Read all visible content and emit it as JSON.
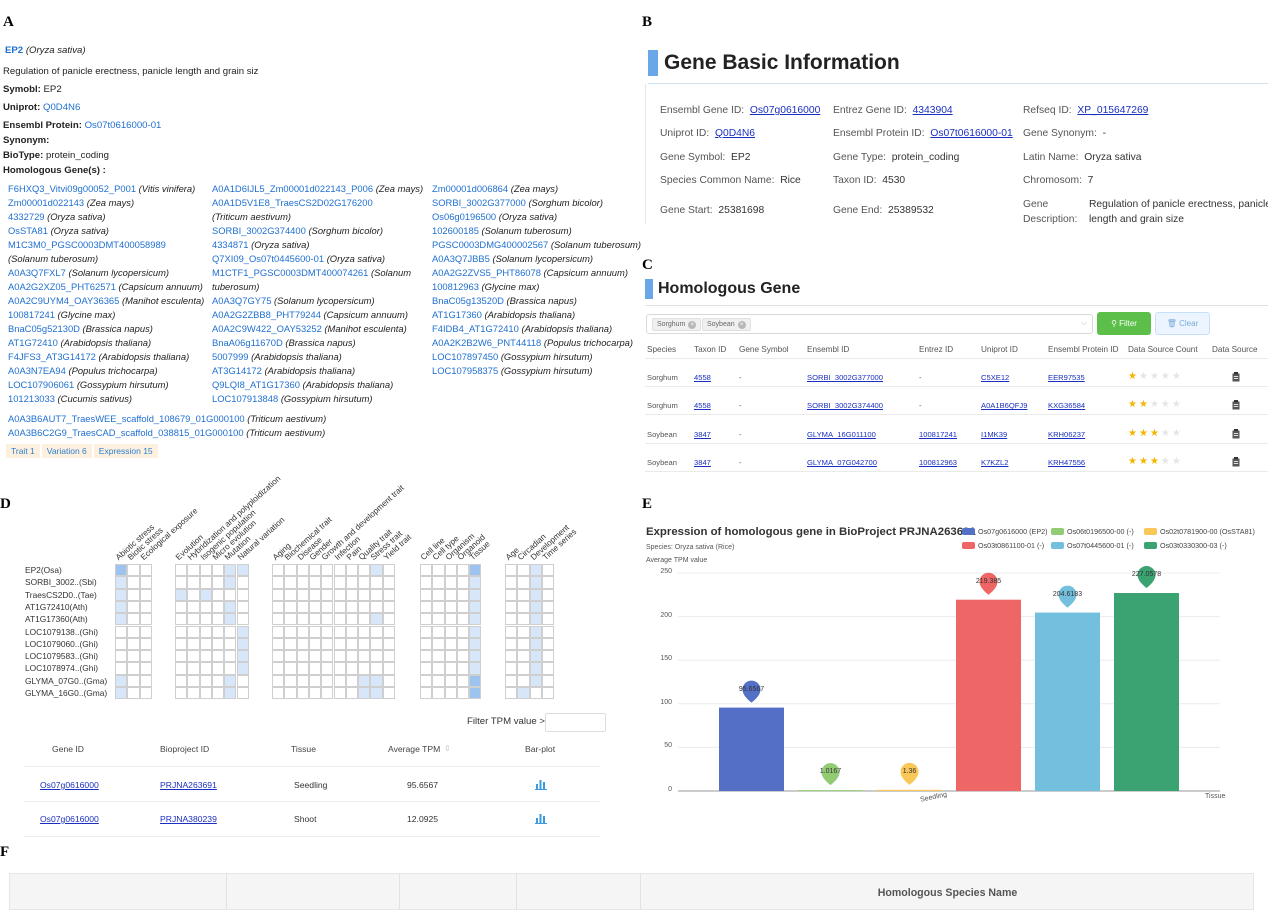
{
  "panel_labels": {
    "a": "A",
    "b": "B",
    "c": "C",
    "d": "D",
    "e": "E",
    "f": "F"
  },
  "panelA": {
    "gene": "EP2",
    "species": "(Oryza sativa)",
    "description": "Regulation of panicle erectness, panicle length and grain siz",
    "symbol_label": "Symobl:",
    "symbol_value": "EP2",
    "uniprot_label": "Uniprot:",
    "uniprot_value": "Q0D4N6",
    "ensembl_label": "Ensembl Protein:",
    "ensembl_value": "Os07t0616000-01",
    "synonym_label": "Synonym:",
    "biotype_label": "BioType:",
    "biotype_value": "protein_coding",
    "homologous_label": "Homologous Gene(s) :",
    "col1": [
      {
        "id": "F6HXQ3_Vitvi09g00052_P001",
        "sp": "(Vitis vinifera)"
      },
      {
        "id": "Zm00001d022143",
        "sp": "(Zea mays)"
      },
      {
        "id": "4332729",
        "sp": "(Oryza sativa)"
      },
      {
        "id": "OsSTA81",
        "sp": "(Oryza sativa)"
      },
      {
        "id": "M1C3M0_PGSC0003DMT400058989",
        "sp": ""
      },
      {
        "id": "",
        "sp": "(Solanum tuberosum)"
      },
      {
        "id": "A0A3Q7FXL7",
        "sp": "(Solanum lycopersicum)"
      },
      {
        "id": "A0A2G2XZ05_PHT62571",
        "sp": "(Capsicum annuum)"
      },
      {
        "id": "A0A2C9UYM4_OAY36365",
        "sp": "(Manihot esculenta)"
      },
      {
        "id": "100817241",
        "sp": "(Glycine max)"
      },
      {
        "id": "BnaC05g52130D",
        "sp": "(Brassica napus)"
      },
      {
        "id": "AT1G72410",
        "sp": "(Arabidopsis thaliana)"
      },
      {
        "id": "F4JFS3_AT3G14172",
        "sp": "(Arabidopsis thaliana)"
      },
      {
        "id": "A0A3N7EA94",
        "sp": "(Populus trichocarpa)"
      },
      {
        "id": "LOC107906061",
        "sp": "(Gossypium hirsutum)"
      },
      {
        "id": "101213033",
        "sp": "(Cucumis sativus)"
      }
    ],
    "col2": [
      {
        "id": "A0A1D6IJL5_Zm00001d022143_P006",
        "sp": "(Zea mays)"
      },
      {
        "id": "A0A1D5V1E8_TraesCS2D02G176200",
        "sp": ""
      },
      {
        "id": "",
        "sp": "(Triticum aestivum)"
      },
      {
        "id": "SORBI_3002G374400",
        "sp": "(Sorghum bicolor)"
      },
      {
        "id": "4334871",
        "sp": "(Oryza sativa)"
      },
      {
        "id": "Q7XI09_Os07t0445600-01",
        "sp": "(Oryza sativa)"
      },
      {
        "id": "M1CTF1_PGSC0003DMT400074261",
        "sp": "(Solanum"
      },
      {
        "id": "",
        "sp": "tuberosum)"
      },
      {
        "id": "A0A3Q7GY75",
        "sp": "(Solanum lycopersicum)"
      },
      {
        "id": "A0A2G2ZBB8_PHT79244",
        "sp": "(Capsicum annuum)"
      },
      {
        "id": "A0A2C9W422_OAY53252",
        "sp": "(Manihot esculenta)"
      },
      {
        "id": "BnaA06g11670D",
        "sp": "(Brassica napus)"
      },
      {
        "id": "5007999",
        "sp": "(Arabidopsis thaliana)"
      },
      {
        "id": "AT3G14172",
        "sp": "(Arabidopsis thaliana)"
      },
      {
        "id": "Q9LQI8_AT1G17360",
        "sp": "(Arabidopsis thaliana)"
      },
      {
        "id": "LOC107913848",
        "sp": "(Gossypium hirsutum)"
      }
    ],
    "col3": [
      {
        "id": "Zm00001d006864",
        "sp": "(Zea mays)"
      },
      {
        "id": "SORBI_3002G377000",
        "sp": "(Sorghum bicolor)"
      },
      {
        "id": "Os06g0196500",
        "sp": "(Oryza sativa)"
      },
      {
        "id": "102600185",
        "sp": "(Solanum tuberosum)"
      },
      {
        "id": "PGSC0003DMG400002567",
        "sp": "(Solanum tuberosum)"
      },
      {
        "id": "A0A3Q7JBB5",
        "sp": "(Solanum lycopersicum)"
      },
      {
        "id": "A0A2G2ZVS5_PHT86078",
        "sp": "(Capsicum annuum)"
      },
      {
        "id": "100812963",
        "sp": "(Glycine max)"
      },
      {
        "id": "BnaC05g13520D",
        "sp": "(Brassica napus)"
      },
      {
        "id": "AT1G17360",
        "sp": "(Arabidopsis thaliana)"
      },
      {
        "id": "F4IDB4_AT1G72410",
        "sp": "(Arabidopsis thaliana)"
      },
      {
        "id": "A0A2K2B2W6_PNT44118",
        "sp": "(Populus trichocarpa)"
      },
      {
        "id": "LOC107897450",
        "sp": "(Gossypium hirsutum)"
      },
      {
        "id": "LOC107958375",
        "sp": "(Gossypium hirsutum)"
      }
    ],
    "long1": {
      "id": "A0A3B6AUT7_TraesWEE_scaffold_108679_01G000100",
      "sp": "(Triticum aestivum)"
    },
    "long2": {
      "id": "A0A3B6C2G9_TraesCAD_scaffold_038815_01G000100",
      "sp": "(Triticum aestivum)"
    },
    "tabs": [
      "Trait 1",
      "Variation 6",
      "Expression 15"
    ]
  },
  "panelB": {
    "title": "Gene Basic Information",
    "ensembl_gene_label": "Ensembl Gene ID:",
    "ensembl_gene_value": "Os07g0616000",
    "entrez_label": "Entrez Gene ID:",
    "entrez_value": "4343904",
    "refseq_label": "Refseq ID:",
    "refseq_value": "XP_015647269",
    "uniprot_label": "Uniprot ID:",
    "uniprot_value": "Q0D4N6",
    "ensembl_protein_label": "Ensembl Protein ID:",
    "ensembl_protein_value": "Os07t0616000-01",
    "synonym_label": "Gene Synonym:",
    "synonym_value": "-",
    "symbol_label": "Gene Symbol:",
    "symbol_value": "EP2",
    "type_label": "Gene Type:",
    "type_value": "protein_coding",
    "latin_label": "Latin Name:",
    "latin_value": "Oryza sativa",
    "common_label": "Species Common Name:",
    "common_value": "Rice",
    "taxon_label": "Taxon ID:",
    "taxon_value": "4530",
    "chrom_label": "Chromosom:",
    "chrom_value": "7",
    "start_label": "Gene Start:",
    "start_value": "25381698",
    "end_label": "Gene End:",
    "end_value": "25389532",
    "desc_label1": "Gene",
    "desc_label2": "Description:",
    "desc_value1": "Regulation of panicle erectness, panicle",
    "desc_value2": "length and grain size"
  },
  "panelC": {
    "title": "Homologous Gene",
    "chips": [
      "Sorghum",
      "Soybean"
    ],
    "filter_label": "Filter",
    "clear_label": "Clear",
    "headers": [
      "Species",
      "Taxon ID",
      "Gene Symbol",
      "Ensembl ID",
      "Entrez ID",
      "Uniprot ID",
      "Ensembl Protein ID",
      "Data Source Count",
      "Data Source"
    ],
    "rows": [
      {
        "species": "Sorghum",
        "taxon": "4558",
        "symbol": "-",
        "ensembl": "SORBI_3002G377000",
        "entrez": "-",
        "uniprot": "C5XE12",
        "protein": "EER97535",
        "stars": 1
      },
      {
        "species": "Sorghum",
        "taxon": "4558",
        "symbol": "-",
        "ensembl": "SORBI_3002G374400",
        "entrez": "-",
        "uniprot": "A0A1B6QFJ9",
        "protein": "KXG36584",
        "stars": 2
      },
      {
        "species": "Soybean",
        "taxon": "3847",
        "symbol": "-",
        "ensembl": "GLYMA_16G011100",
        "entrez": "100817241",
        "uniprot": "I1MK39",
        "protein": "KRH06237",
        "stars": 3
      },
      {
        "species": "Soybean",
        "taxon": "3847",
        "symbol": "-",
        "ensembl": "GLYMA_07G042700",
        "entrez": "100812963",
        "uniprot": "K7KZL2",
        "protein": "KRH47556",
        "stars": 3
      }
    ]
  },
  "panelD": {
    "groups": [
      [
        "Abiotic stress",
        "Biotic stress",
        "Ecological exposure"
      ],
      [
        "Evolution",
        "Hybridization and polyploidization",
        "Isogenic population",
        "Micro evolution",
        "Mutation",
        "Natural variation"
      ],
      [
        "Aging",
        "Biochemical trait",
        "Disease",
        "Gender",
        "Growth and development trait",
        "Infection",
        "Pain",
        "Quality trait",
        "Stress trait",
        "Yield trait"
      ],
      [
        "Cell line",
        "Cell type",
        "Organism",
        "Organoid",
        "Tissue"
      ],
      [
        "Age",
        "Circadian",
        "Development",
        "Time series"
      ]
    ],
    "genes": [
      "EP2(Osa)",
      "SORBI_3002..(Sbi)",
      "TraesCS2D0..(Tae)",
      "AT1G72410(Ath)",
      "AT1G17360(Ath)",
      "LOC1079138..(Ghi)",
      "LOC1079060..(Ghi)",
      "LOC1079583..(Ghi)",
      "LOC1078974..(Ghi)",
      "GLYMA_07G0..(Gma)",
      "GLYMA_16G0..(Gma)"
    ],
    "filter_label": "Filter TPM value >",
    "table_headers": [
      "Gene ID",
      "Bioproject ID",
      "Tissue",
      "Average TPM",
      "Bar-plot"
    ],
    "table_rows": [
      {
        "gene": "Os07g0616000",
        "project": "PRJNA263691",
        "tissue": "Seedling",
        "tpm": "95.6567"
      },
      {
        "gene": "Os07g0616000",
        "project": "PRJNA380239",
        "tissue": "Shoot",
        "tpm": "12.0925"
      }
    ]
  },
  "chart_data": {
    "type": "bar",
    "title": "Expression of homologous gene in BioProject PRJNA263691",
    "subtitle": "Species: Oryza sativa (Rice)",
    "ylabel": "Average TPM value",
    "xlabel": "Tissue",
    "categories": [
      "Seedling"
    ],
    "ylim": [
      0,
      250
    ],
    "yticks": [
      0,
      50,
      100,
      150,
      200,
      250
    ],
    "legend_position": "top-right",
    "series": [
      {
        "name": "Os07g0616000 (EP2)",
        "value": 95.6567,
        "label": "95.6567",
        "color": "#5470c6"
      },
      {
        "name": "Os06t0196500-00 (-)",
        "value": 1.0167,
        "label": "1.0167",
        "color": "#91cc75"
      },
      {
        "name": "Os02t0781900-00 (OsSTA81)",
        "value": 1.36,
        "label": "1.36",
        "color": "#fac858"
      },
      {
        "name": "Os03t0861100-01 (-)",
        "value": 219.385,
        "label": "219.385",
        "color": "#ee6666"
      },
      {
        "name": "Os07t0445600-01 (-)",
        "value": 204.6183,
        "label": "204.6183",
        "color": "#73c0de"
      },
      {
        "name": "Os03t0330300-03 (-)",
        "value": 227.0578,
        "label": "227.0578",
        "color": "#3ba272"
      }
    ]
  },
  "panelF": {
    "header": "Homologous Species Name"
  }
}
